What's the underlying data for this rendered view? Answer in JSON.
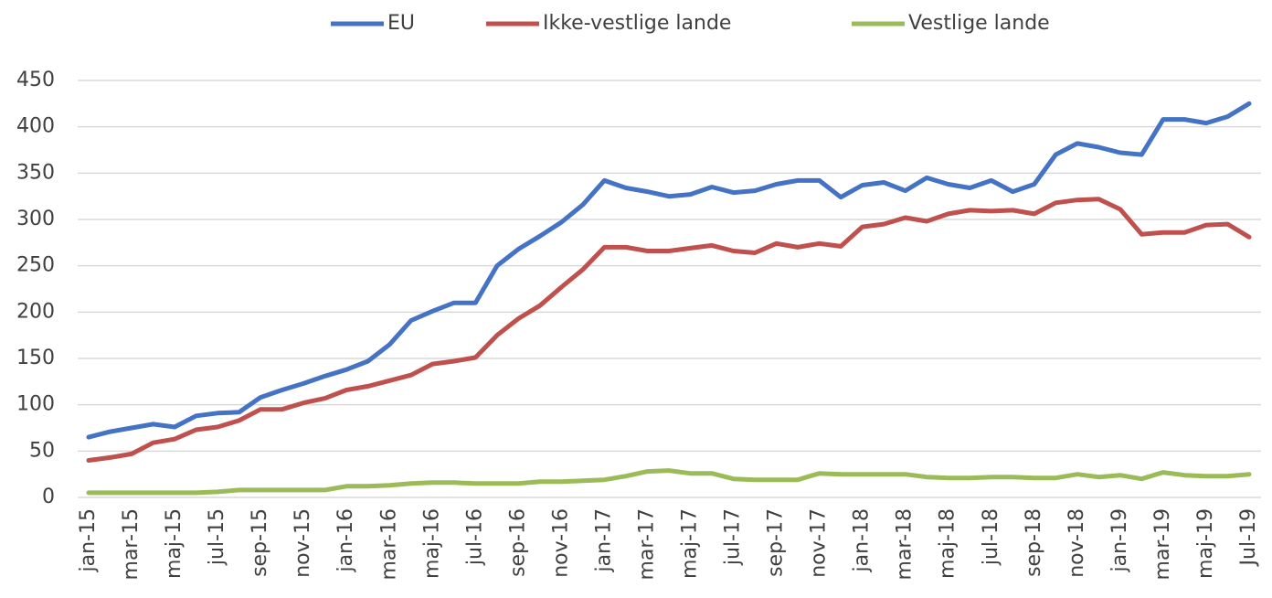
{
  "chart_data": {
    "type": "line",
    "categories": [
      "jan-15",
      null,
      "mar-15",
      null,
      "maj-15",
      null,
      "jul-15",
      null,
      "sep-15",
      null,
      "nov-15",
      null,
      "jan-16",
      null,
      "mar-16",
      null,
      "maj-16",
      null,
      "jul-16",
      null,
      "sep-16",
      null,
      "nov-16",
      null,
      "jan-17",
      null,
      "mar-17",
      null,
      "maj-17",
      null,
      "jul-17",
      null,
      "sep-17",
      null,
      "nov-17",
      null,
      "jan-18",
      null,
      "mar-18",
      null,
      "maj-18",
      null,
      "jul-18",
      null,
      "sep-18",
      null,
      "nov-18",
      null,
      "jan-19",
      null,
      "mar-19",
      null,
      "maj-19",
      null,
      "Jul-19"
    ],
    "series": [
      {
        "name": "EU",
        "color": "#4472c4",
        "values": [
          65,
          71,
          75,
          79,
          76,
          88,
          91,
          92,
          108,
          116,
          123,
          131,
          138,
          147,
          165,
          191,
          201,
          210,
          210,
          250,
          268,
          282,
          297,
          316,
          342,
          334,
          330,
          325,
          327,
          335,
          329,
          331,
          338,
          342,
          342,
          324,
          337,
          340,
          331,
          345,
          338,
          334,
          342,
          330,
          338,
          370,
          382,
          378,
          372,
          370,
          408,
          408,
          404,
          411,
          425
        ]
      },
      {
        "name": "Ikke-vestlige lande",
        "color": "#c0504d",
        "values": [
          40,
          43,
          47,
          59,
          63,
          73,
          76,
          83,
          95,
          95,
          102,
          107,
          116,
          120,
          126,
          132,
          144,
          147,
          151,
          175,
          193,
          207,
          227,
          246,
          270,
          270,
          266,
          266,
          269,
          272,
          266,
          264,
          274,
          270,
          274,
          271,
          292,
          295,
          302,
          298,
          306,
          310,
          309,
          310,
          306,
          318,
          321,
          322,
          311,
          284,
          286,
          286,
          294,
          295,
          281
        ]
      },
      {
        "name": "Vestlige lande",
        "color": "#9bbb59",
        "values": [
          5,
          5,
          5,
          5,
          5,
          5,
          6,
          8,
          8,
          8,
          8,
          8,
          12,
          12,
          13,
          15,
          16,
          16,
          15,
          15,
          15,
          17,
          17,
          18,
          19,
          23,
          28,
          29,
          26,
          26,
          20,
          19,
          19,
          19,
          26,
          25,
          25,
          25,
          25,
          22,
          21,
          21,
          22,
          22,
          21,
          21,
          25,
          22,
          24,
          20,
          27,
          24,
          23,
          23,
          25
        ]
      }
    ],
    "ylim": [
      0,
      450
    ],
    "yticks": [
      0,
      50,
      100,
      150,
      200,
      250,
      300,
      350,
      400,
      450
    ],
    "grid": true,
    "legend": "top"
  }
}
